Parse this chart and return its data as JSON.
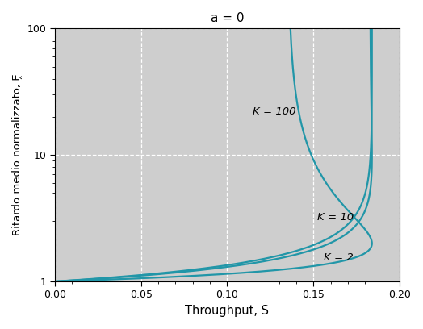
{
  "title": "a = 0",
  "xlabel": "Throughput, S",
  "ylabel": "Ritardo medio normalizzato, Ḙ",
  "K_values": [
    2,
    10,
    100
  ],
  "K_labels": {
    "2": "K = 2",
    "10": "K = 10",
    "100": "K = 100"
  },
  "K_label_xy": {
    "2": [
      0.156,
      1.55
    ],
    "10": [
      0.152,
      3.2
    ],
    "100": [
      0.115,
      22.0
    ]
  },
  "xlim": [
    0.0,
    0.2
  ],
  "ylim": [
    1,
    100
  ],
  "line_color": "#2196A8",
  "bg_color": "#CECECE",
  "grid_color": "#FFFFFF",
  "figsize": [
    5.24,
    4.08
  ],
  "dpi": 100,
  "xticks": [
    0.0,
    0.05,
    0.1,
    0.15,
    0.2
  ],
  "yticks": [
    1,
    10,
    100
  ]
}
